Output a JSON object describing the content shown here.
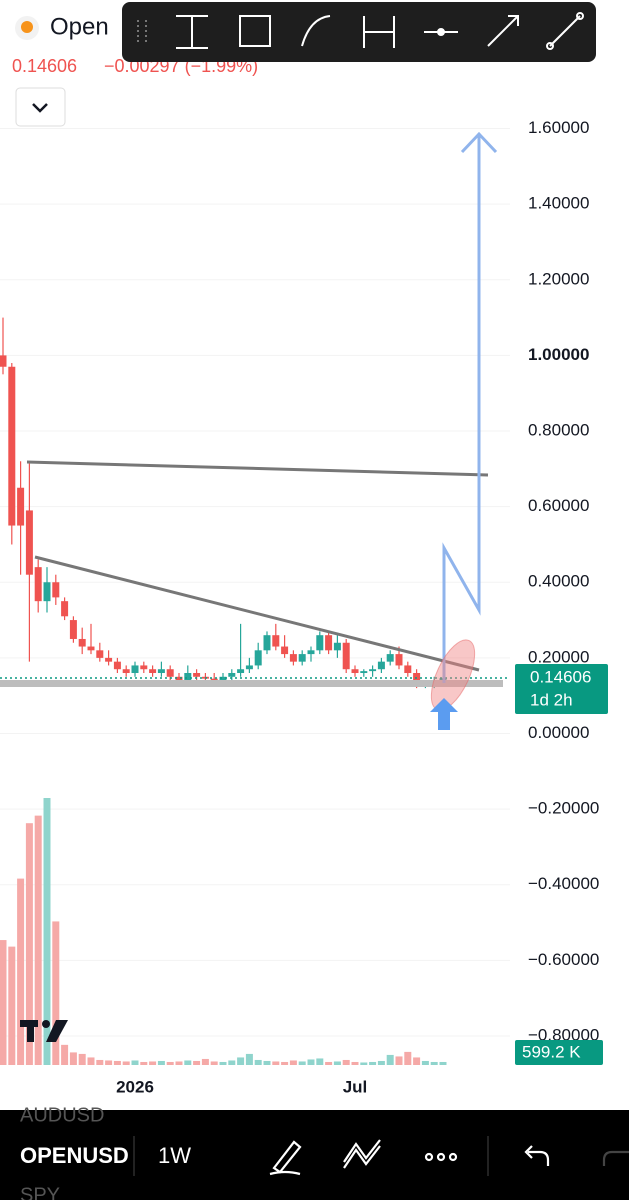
{
  "header": {
    "symbol": "Open",
    "change": "−0.00297 (−1.99%)"
  },
  "chart_data": {
    "type": "candlestick",
    "categories": [
      null,
      null,
      null,
      null,
      null,
      null,
      null,
      null,
      null,
      null,
      null,
      null,
      null,
      null,
      null,
      "2026",
      null,
      null,
      null,
      null,
      null,
      null,
      null,
      null,
      null,
      null,
      null,
      null,
      null,
      null,
      null,
      null,
      null,
      null,
      null,
      null,
      null,
      null,
      null,
      null,
      "Jul",
      null,
      null,
      null,
      null,
      null,
      null,
      null,
      null,
      null,
      null
    ],
    "open": [
      1.0,
      0.97,
      0.65,
      0.59,
      0.44,
      0.35,
      0.4,
      0.35,
      0.3,
      0.25,
      0.23,
      0.22,
      0.2,
      0.19,
      0.17,
      0.16,
      0.18,
      0.17,
      0.16,
      0.17,
      0.15,
      0.14,
      0.16,
      0.15,
      0.145,
      0.14,
      0.15,
      0.16,
      0.17,
      0.18,
      0.22,
      0.26,
      0.23,
      0.21,
      0.19,
      0.21,
      0.22,
      0.26,
      0.22,
      0.24,
      0.17,
      0.16,
      0.165,
      0.17,
      0.19,
      0.21,
      0.18,
      0.16,
      0.13,
      0.13,
      0.14
    ],
    "high": [
      1.1,
      0.98,
      0.72,
      0.72,
      0.46,
      0.44,
      0.42,
      0.36,
      0.31,
      0.28,
      0.29,
      0.24,
      0.22,
      0.2,
      0.18,
      0.19,
      0.19,
      0.18,
      0.19,
      0.18,
      0.16,
      0.18,
      0.17,
      0.16,
      0.16,
      0.16,
      0.17,
      0.29,
      0.2,
      0.24,
      0.27,
      0.29,
      0.26,
      0.22,
      0.22,
      0.23,
      0.27,
      0.27,
      0.26,
      0.25,
      0.18,
      0.17,
      0.18,
      0.2,
      0.22,
      0.23,
      0.19,
      0.17,
      0.14,
      0.15,
      0.15
    ],
    "low": [
      0.95,
      0.5,
      0.42,
      0.19,
      0.32,
      0.32,
      0.34,
      0.3,
      0.24,
      0.21,
      0.21,
      0.19,
      0.18,
      0.16,
      0.15,
      0.15,
      0.16,
      0.15,
      0.15,
      0.14,
      0.13,
      0.13,
      0.14,
      0.14,
      0.13,
      0.13,
      0.14,
      0.15,
      0.16,
      0.17,
      0.21,
      0.22,
      0.2,
      0.18,
      0.18,
      0.19,
      0.21,
      0.21,
      0.2,
      0.16,
      0.15,
      0.15,
      0.15,
      0.16,
      0.18,
      0.17,
      0.15,
      0.12,
      0.12,
      0.12,
      0.13
    ],
    "close": [
      0.97,
      0.55,
      0.55,
      0.42,
      0.35,
      0.4,
      0.36,
      0.31,
      0.25,
      0.23,
      0.22,
      0.2,
      0.19,
      0.17,
      0.16,
      0.18,
      0.17,
      0.16,
      0.17,
      0.15,
      0.14,
      0.16,
      0.15,
      0.145,
      0.14,
      0.15,
      0.16,
      0.17,
      0.18,
      0.22,
      0.26,
      0.23,
      0.21,
      0.19,
      0.21,
      0.22,
      0.26,
      0.22,
      0.24,
      0.17,
      0.16,
      0.165,
      0.17,
      0.19,
      0.21,
      0.18,
      0.16,
      0.13,
      0.13,
      0.14,
      0.14606
    ],
    "volume": {
      "values": [
        24800,
        23500,
        37000,
        48000,
        49500,
        53000,
        28500,
        4000,
        2500,
        2200,
        1500,
        1000,
        900,
        800,
        700,
        900,
        600,
        700,
        800,
        600,
        700,
        900,
        800,
        1200,
        700,
        600,
        900,
        1500,
        2200,
        1000,
        800,
        700,
        600,
        900,
        700,
        1100,
        1300,
        600,
        700,
        1000,
        600,
        500,
        600,
        800,
        2000,
        1700,
        2600,
        1500,
        800,
        600,
        599.2
      ],
      "last_label": "599.2 K"
    },
    "countdown": "1d 2h",
    "up_color": "#26a69a",
    "down_color": "#ef5350",
    "volume_up_color": "#8fd4cc",
    "volume_down_color": "#f5a9a7",
    "ylim": [
      -0.89,
      1.94
    ],
    "yticks": [
      {
        "value": 1.6,
        "label": "1.60000"
      },
      {
        "value": 1.4,
        "label": "1.40000"
      },
      {
        "value": 1.2,
        "label": "1.20000"
      },
      {
        "value": 1.0,
        "label": "1.00000"
      },
      {
        "value": 0.8,
        "label": "0.80000"
      },
      {
        "value": 0.6,
        "label": "0.60000"
      },
      {
        "value": 0.4,
        "label": "0.40000"
      },
      {
        "value": 0.2,
        "label": "0.20000"
      },
      {
        "value": 0,
        "label": "0.00000"
      },
      {
        "value": -0.2,
        "label": "−0.20000"
      },
      {
        "value": -0.4,
        "label": "−0.40000"
      },
      {
        "value": -0.6,
        "label": "−0.60000"
      },
      {
        "value": -0.8,
        "label": "−0.80000"
      }
    ],
    "grid": true
  },
  "bottom_bar": {
    "above": "AUDUSD",
    "symbol": "OPENUSD",
    "interval": "1W",
    "below": "SPY"
  }
}
